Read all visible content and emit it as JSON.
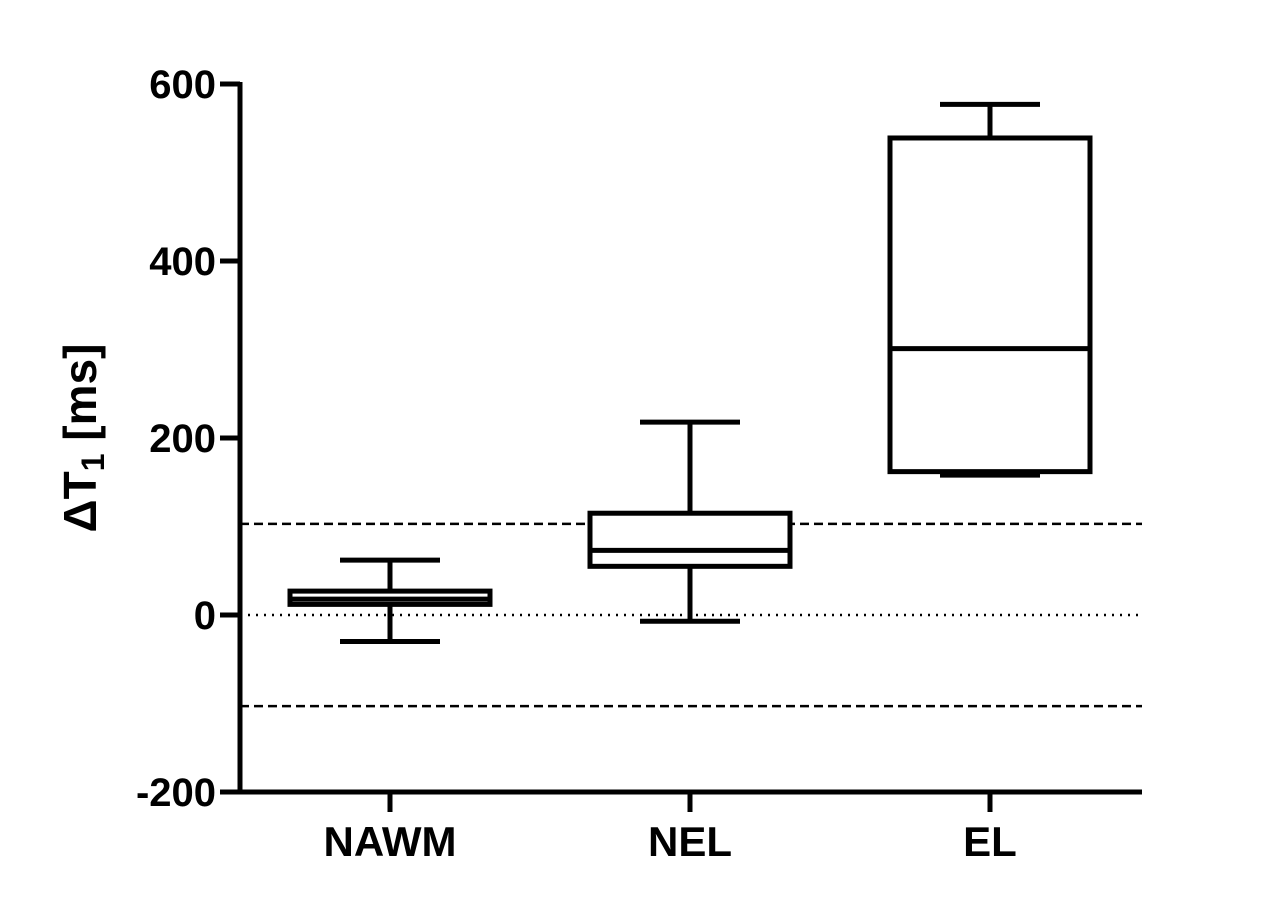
{
  "chart_data": {
    "type": "box",
    "title": "",
    "xlabel": "",
    "ylabel": {
      "symbol": "Δ",
      "base": "T",
      "subscript": "1",
      "unit": " [ms]"
    },
    "ylim": [
      -200,
      600
    ],
    "yticks": [
      -200,
      0,
      200,
      400,
      600
    ],
    "categories": [
      "NAWM",
      "NEL",
      "EL"
    ],
    "boxes": [
      {
        "category": "NAWM",
        "whisker_low": -30,
        "q1": 12,
        "median": 18,
        "q3": 27,
        "whisker_high": 62
      },
      {
        "category": "NEL",
        "whisker_low": -7,
        "q1": 55,
        "median": 73,
        "q3": 115,
        "whisker_high": 218
      },
      {
        "category": "EL",
        "whisker_low": 158,
        "q1": 162,
        "median": 301,
        "q3": 539,
        "whisker_high": 577
      }
    ],
    "reference_lines": [
      {
        "y": 0,
        "style": "dotted"
      },
      {
        "y": 103,
        "style": "dashed"
      },
      {
        "y": -103,
        "style": "dashed"
      }
    ],
    "grid": false,
    "legend": "none"
  }
}
